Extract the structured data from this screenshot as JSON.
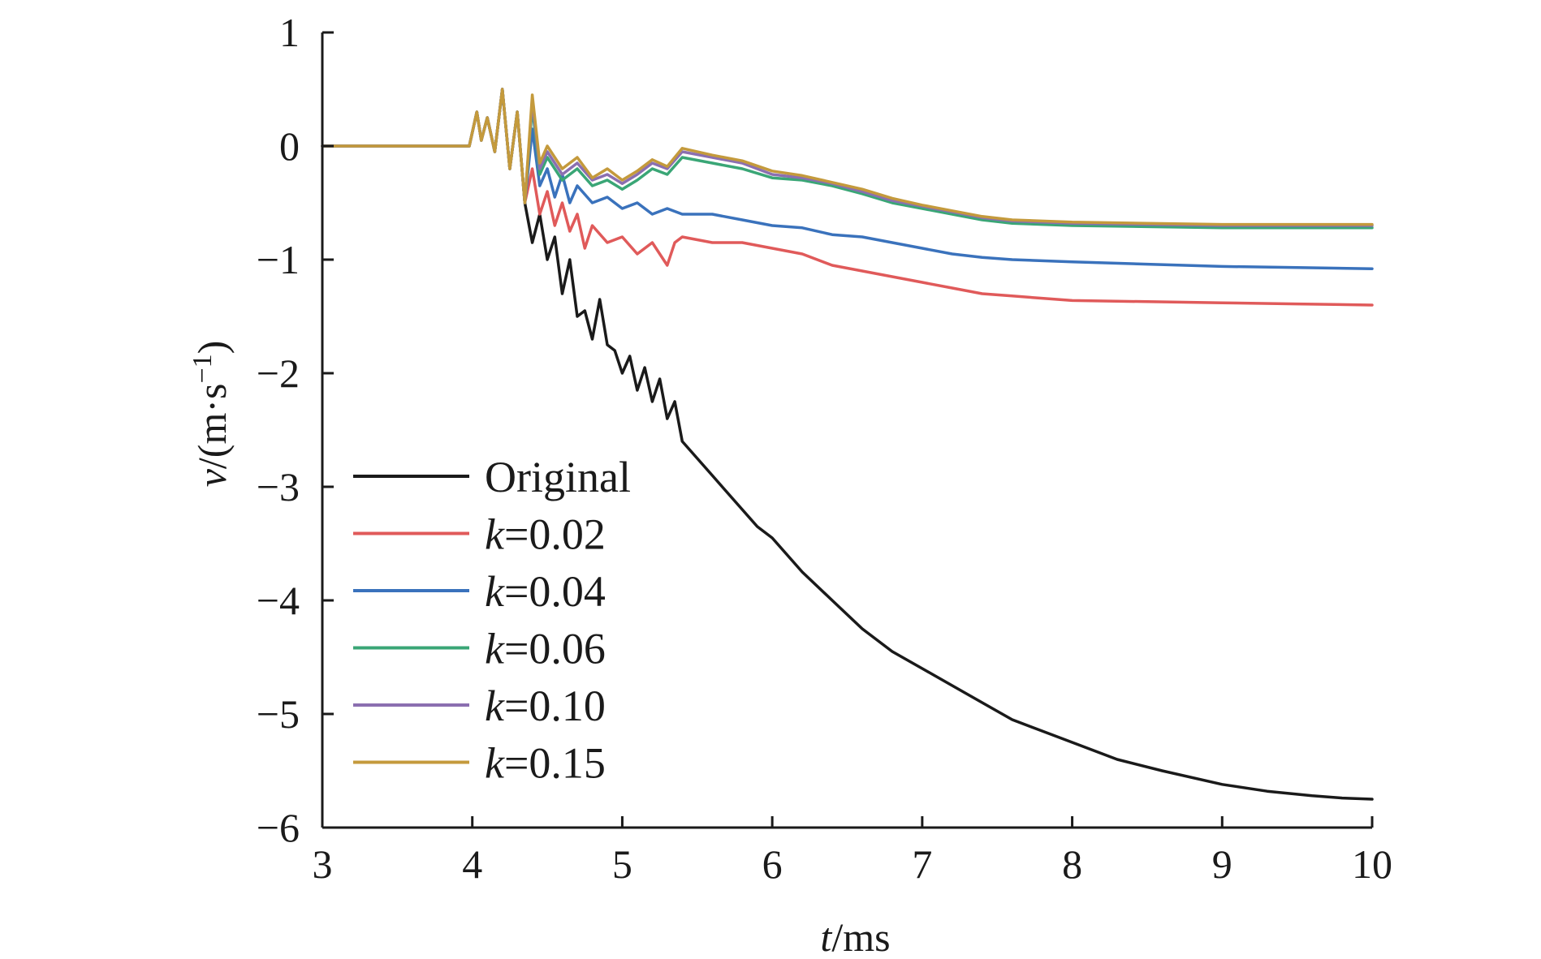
{
  "chart_data": {
    "type": "line",
    "xlabel_var": "t",
    "xlabel_unit": "/ms",
    "ylabel_var": "v",
    "ylabel_unit_prefix": "/(m·s",
    "ylabel_unit_sup": "−1",
    "ylabel_unit_suffix": ")",
    "xlim": [
      3,
      10
    ],
    "ylim": [
      -6,
      1
    ],
    "xticks": [
      3,
      4,
      5,
      6,
      7,
      8,
      9,
      10
    ],
    "xtick_labels": [
      "3",
      "4",
      "5",
      "6",
      "7",
      "8",
      "9",
      "10"
    ],
    "yticks": [
      1,
      0,
      -1,
      -2,
      -3,
      -4,
      -5,
      -6
    ],
    "ytick_labels": [
      "1",
      "0",
      "−1",
      "−2",
      "−3",
      "−4",
      "−5",
      "−6"
    ],
    "grid": false,
    "legend_position": "bottom-left",
    "series": [
      {
        "name": "Original",
        "color": "#1a1a1a",
        "x": [
          3.0,
          3.98,
          4.03,
          4.06,
          4.1,
          4.15,
          4.2,
          4.25,
          4.3,
          4.35,
          4.4,
          4.45,
          4.5,
          4.55,
          4.6,
          4.65,
          4.7,
          4.75,
          4.8,
          4.85,
          4.9,
          4.95,
          5.0,
          5.05,
          5.1,
          5.15,
          5.2,
          5.25,
          5.3,
          5.35,
          5.4,
          5.5,
          5.6,
          5.7,
          5.8,
          5.9,
          6.0,
          6.2,
          6.4,
          6.6,
          6.8,
          7.0,
          7.2,
          7.4,
          7.6,
          7.8,
          8.0,
          8.3,
          8.6,
          9.0,
          9.3,
          9.6,
          9.8,
          10.0
        ],
        "y": [
          0.0,
          0.0,
          0.3,
          0.05,
          0.25,
          -0.05,
          0.5,
          -0.2,
          0.3,
          -0.5,
          -0.85,
          -0.6,
          -1.0,
          -0.8,
          -1.3,
          -1.0,
          -1.5,
          -1.45,
          -1.7,
          -1.35,
          -1.75,
          -1.8,
          -2.0,
          -1.85,
          -2.15,
          -1.95,
          -2.25,
          -2.05,
          -2.4,
          -2.25,
          -2.6,
          -2.75,
          -2.9,
          -3.05,
          -3.2,
          -3.35,
          -3.45,
          -3.75,
          -4.0,
          -4.25,
          -4.45,
          -4.6,
          -4.75,
          -4.9,
          -5.05,
          -5.15,
          -5.25,
          -5.4,
          -5.5,
          -5.62,
          -5.68,
          -5.72,
          -5.74,
          -5.75
        ]
      },
      {
        "name": "k=0.02",
        "color": "#e05a5a",
        "x": [
          3.0,
          3.98,
          4.03,
          4.06,
          4.1,
          4.15,
          4.2,
          4.25,
          4.3,
          4.35,
          4.4,
          4.45,
          4.5,
          4.55,
          4.6,
          4.65,
          4.7,
          4.75,
          4.8,
          4.9,
          5.0,
          5.1,
          5.2,
          5.3,
          5.35,
          5.4,
          5.6,
          5.8,
          6.0,
          6.2,
          6.4,
          6.6,
          6.8,
          7.0,
          7.2,
          7.4,
          7.6,
          7.8,
          8.0,
          8.5,
          9.0,
          9.5,
          10.0
        ],
        "y": [
          0.0,
          0.0,
          0.3,
          0.05,
          0.25,
          -0.05,
          0.5,
          -0.2,
          0.3,
          -0.5,
          -0.2,
          -0.6,
          -0.4,
          -0.7,
          -0.5,
          -0.75,
          -0.6,
          -0.9,
          -0.7,
          -0.85,
          -0.8,
          -0.95,
          -0.85,
          -1.05,
          -0.85,
          -0.8,
          -0.85,
          -0.85,
          -0.9,
          -0.95,
          -1.05,
          -1.1,
          -1.15,
          -1.2,
          -1.25,
          -1.3,
          -1.32,
          -1.34,
          -1.36,
          -1.37,
          -1.38,
          -1.39,
          -1.4
        ]
      },
      {
        "name": "k=0.04",
        "color": "#3a72bc",
        "x": [
          3.0,
          3.98,
          4.03,
          4.06,
          4.1,
          4.15,
          4.2,
          4.25,
          4.3,
          4.35,
          4.4,
          4.45,
          4.5,
          4.55,
          4.6,
          4.65,
          4.7,
          4.8,
          4.9,
          5.0,
          5.1,
          5.2,
          5.3,
          5.4,
          5.6,
          5.8,
          6.0,
          6.2,
          6.4,
          6.6,
          6.8,
          7.0,
          7.2,
          7.4,
          7.6,
          8.0,
          8.5,
          9.0,
          9.5,
          10.0
        ],
        "y": [
          0.0,
          0.0,
          0.3,
          0.05,
          0.25,
          -0.05,
          0.5,
          -0.2,
          0.3,
          -0.5,
          0.15,
          -0.35,
          -0.2,
          -0.45,
          -0.25,
          -0.5,
          -0.35,
          -0.5,
          -0.45,
          -0.55,
          -0.5,
          -0.6,
          -0.55,
          -0.6,
          -0.6,
          -0.65,
          -0.7,
          -0.72,
          -0.78,
          -0.8,
          -0.85,
          -0.9,
          -0.95,
          -0.98,
          -1.0,
          -1.02,
          -1.04,
          -1.06,
          -1.07,
          -1.08
        ]
      },
      {
        "name": "k=0.06",
        "color": "#3aa676",
        "x": [
          3.0,
          3.98,
          4.03,
          4.06,
          4.1,
          4.15,
          4.2,
          4.25,
          4.3,
          4.35,
          4.4,
          4.45,
          4.5,
          4.6,
          4.7,
          4.8,
          4.9,
          5.0,
          5.1,
          5.2,
          5.3,
          5.4,
          5.6,
          5.8,
          6.0,
          6.2,
          6.4,
          6.6,
          6.8,
          7.0,
          7.2,
          7.4,
          7.6,
          8.0,
          8.5,
          9.0,
          9.5,
          10.0
        ],
        "y": [
          0.0,
          0.0,
          0.3,
          0.05,
          0.25,
          -0.05,
          0.5,
          -0.2,
          0.3,
          -0.5,
          0.35,
          -0.25,
          -0.1,
          -0.3,
          -0.2,
          -0.35,
          -0.3,
          -0.38,
          -0.3,
          -0.2,
          -0.25,
          -0.1,
          -0.15,
          -0.2,
          -0.28,
          -0.3,
          -0.35,
          -0.42,
          -0.5,
          -0.55,
          -0.6,
          -0.65,
          -0.68,
          -0.7,
          -0.71,
          -0.72,
          -0.72,
          -0.72
        ]
      },
      {
        "name": "k=0.10",
        "color": "#8b6fb0",
        "x": [
          3.0,
          3.98,
          4.03,
          4.06,
          4.1,
          4.15,
          4.2,
          4.25,
          4.3,
          4.35,
          4.4,
          4.45,
          4.5,
          4.6,
          4.7,
          4.8,
          4.9,
          5.0,
          5.1,
          5.2,
          5.3,
          5.4,
          5.6,
          5.8,
          6.0,
          6.2,
          6.4,
          6.6,
          6.8,
          7.0,
          7.2,
          7.4,
          7.6,
          8.0,
          8.5,
          9.0,
          9.5,
          10.0
        ],
        "y": [
          0.0,
          0.0,
          0.3,
          0.05,
          0.25,
          -0.05,
          0.5,
          -0.2,
          0.3,
          -0.5,
          0.4,
          -0.2,
          -0.05,
          -0.25,
          -0.15,
          -0.3,
          -0.25,
          -0.33,
          -0.25,
          -0.15,
          -0.2,
          -0.05,
          -0.1,
          -0.15,
          -0.25,
          -0.28,
          -0.33,
          -0.4,
          -0.48,
          -0.53,
          -0.58,
          -0.63,
          -0.66,
          -0.68,
          -0.69,
          -0.7,
          -0.7,
          -0.7
        ]
      },
      {
        "name": "k=0.15",
        "color": "#c49a3c",
        "x": [
          3.0,
          3.98,
          4.03,
          4.06,
          4.1,
          4.15,
          4.2,
          4.25,
          4.3,
          4.35,
          4.4,
          4.45,
          4.5,
          4.6,
          4.7,
          4.8,
          4.9,
          5.0,
          5.1,
          5.2,
          5.3,
          5.4,
          5.6,
          5.8,
          6.0,
          6.2,
          6.4,
          6.6,
          6.8,
          7.0,
          7.2,
          7.4,
          7.6,
          8.0,
          8.5,
          9.0,
          9.5,
          10.0
        ],
        "y": [
          0.0,
          0.0,
          0.3,
          0.05,
          0.25,
          -0.05,
          0.5,
          -0.2,
          0.3,
          -0.5,
          0.45,
          -0.15,
          0.0,
          -0.2,
          -0.1,
          -0.28,
          -0.2,
          -0.3,
          -0.22,
          -0.12,
          -0.18,
          -0.02,
          -0.08,
          -0.13,
          -0.22,
          -0.26,
          -0.32,
          -0.38,
          -0.46,
          -0.52,
          -0.57,
          -0.62,
          -0.65,
          -0.67,
          -0.68,
          -0.69,
          -0.69,
          -0.69
        ]
      }
    ]
  }
}
